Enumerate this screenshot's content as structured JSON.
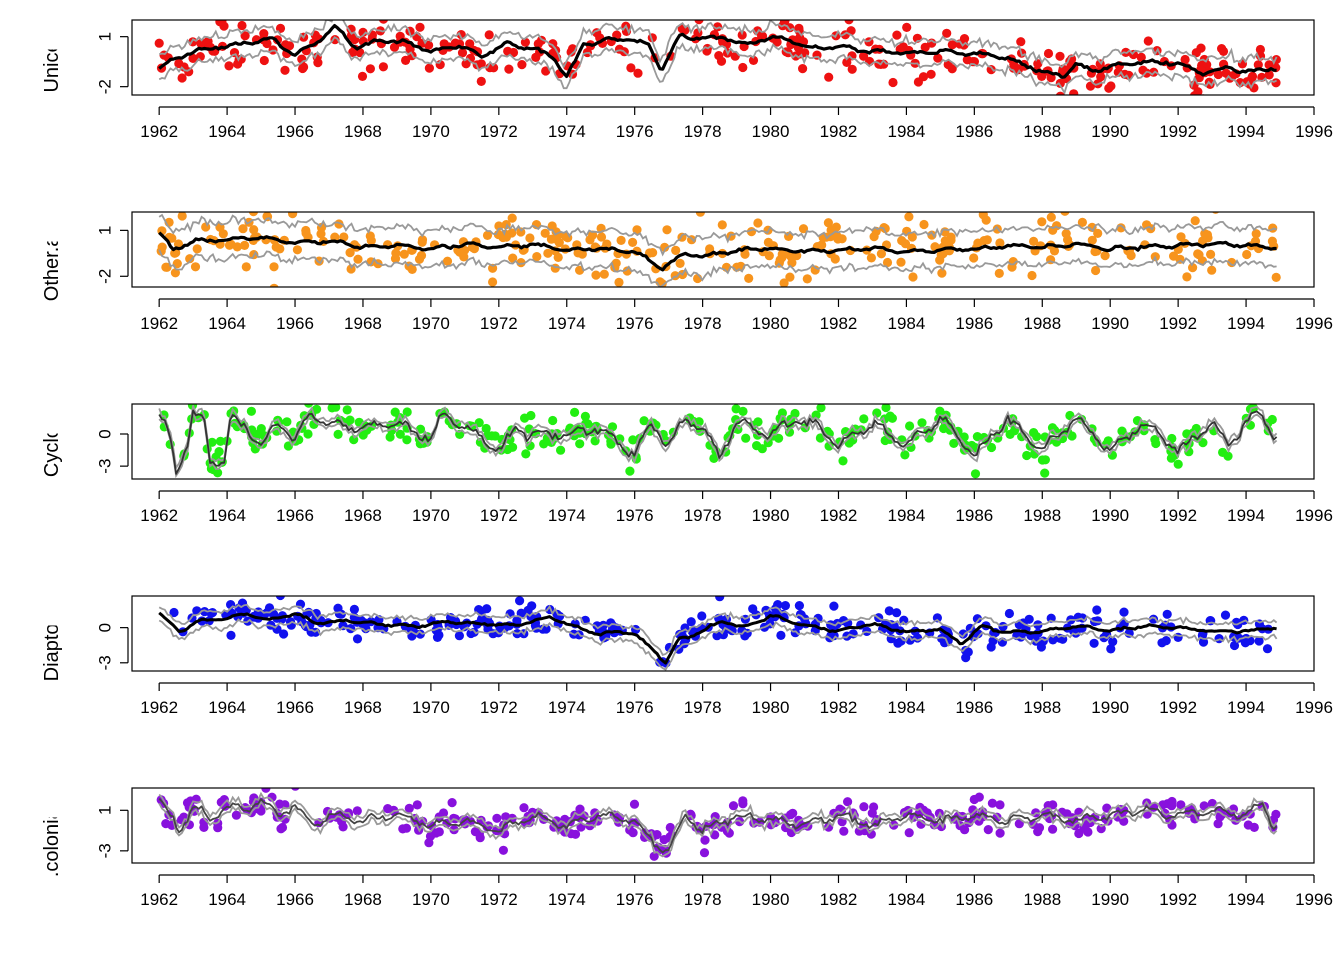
{
  "chart_data": [
    {
      "type": "scatter",
      "ylabel": "Unicells",
      "ylim": [
        -2.5,
        2.0
      ],
      "yticks": [
        1,
        -2
      ],
      "xlim": [
        1961.2,
        1996
      ],
      "xticks": [
        1962,
        1964,
        1966,
        1968,
        1970,
        1972,
        1974,
        1976,
        1978,
        1980,
        1982,
        1984,
        1986,
        1988,
        1990,
        1992,
        1994,
        1996
      ],
      "point_color": "#ee1111",
      "fit_color": "#000000",
      "band_color": "#999999",
      "fit_width": 3.2,
      "band_offset": 0.7,
      "fit_knots": [
        [
          1962.0,
          -0.9
        ],
        [
          1962.4,
          -0.4
        ],
        [
          1963.0,
          0.1
        ],
        [
          1963.8,
          0.4
        ],
        [
          1964.6,
          0.6
        ],
        [
          1965.3,
          0.9
        ],
        [
          1966.0,
          -0.1
        ],
        [
          1966.5,
          0.5
        ],
        [
          1967.2,
          1.6
        ],
        [
          1967.8,
          0.3
        ],
        [
          1968.5,
          0.8
        ],
        [
          1969.2,
          0.7
        ],
        [
          1970.0,
          0.1
        ],
        [
          1970.8,
          0.5
        ],
        [
          1971.5,
          -0.2
        ],
        [
          1972.2,
          0.6
        ],
        [
          1973.0,
          0.3
        ],
        [
          1973.6,
          -0.2
        ],
        [
          1974.0,
          -1.4
        ],
        [
          1974.5,
          0.5
        ],
        [
          1975.2,
          0.8
        ],
        [
          1975.8,
          0.9
        ],
        [
          1976.4,
          0.5
        ],
        [
          1976.8,
          -1.0
        ],
        [
          1977.3,
          1.0
        ],
        [
          1978.0,
          0.9
        ],
        [
          1978.6,
          1.0
        ],
        [
          1979.3,
          0.5
        ],
        [
          1980.0,
          1.0
        ],
        [
          1980.6,
          0.8
        ],
        [
          1981.2,
          0.3
        ],
        [
          1982.0,
          0.4
        ],
        [
          1982.6,
          0.2
        ],
        [
          1983.3,
          0.1
        ],
        [
          1984.0,
          0.0
        ],
        [
          1985.0,
          0.1
        ],
        [
          1986.0,
          0.0
        ],
        [
          1987.0,
          -0.3
        ],
        [
          1987.6,
          -0.8
        ],
        [
          1988.2,
          -1.2
        ],
        [
          1988.6,
          -1.4
        ],
        [
          1989.0,
          -0.6
        ],
        [
          1989.5,
          -1.1
        ],
        [
          1990.0,
          -0.8
        ],
        [
          1991.0,
          -0.5
        ],
        [
          1992.0,
          -0.6
        ],
        [
          1992.7,
          -1.2
        ],
        [
          1993.5,
          -0.9
        ],
        [
          1994.2,
          -1.1
        ],
        [
          1994.8,
          -0.9
        ]
      ],
      "jitter": 0.22,
      "spread": 0.75,
      "seed": 11,
      "points_count": 330
    },
    {
      "type": "scatter",
      "ylabel": "Other.algae",
      "ylim": [
        -2.7,
        2.2
      ],
      "yticks": [
        1,
        -2
      ],
      "xlim": [
        1961.2,
        1996
      ],
      "xticks": [
        1962,
        1964,
        1966,
        1968,
        1970,
        1972,
        1974,
        1976,
        1978,
        1980,
        1982,
        1984,
        1986,
        1988,
        1990,
        1992,
        1994,
        1996
      ],
      "point_color": "#f7941d",
      "fit_color": "#000000",
      "band_color": "#999999",
      "fit_width": 3.2,
      "band_offset": 1.15,
      "fit_knots": [
        [
          1962.0,
          0.9
        ],
        [
          1962.4,
          -0.3
        ],
        [
          1963.0,
          0.3
        ],
        [
          1964.0,
          0.4
        ],
        [
          1965.0,
          0.5
        ],
        [
          1966.0,
          0.2
        ],
        [
          1967.0,
          0.3
        ],
        [
          1968.0,
          -0.1
        ],
        [
          1969.0,
          0.0
        ],
        [
          1970.0,
          -0.2
        ],
        [
          1971.0,
          0.1
        ],
        [
          1972.0,
          -0.1
        ],
        [
          1973.0,
          0.1
        ],
        [
          1974.0,
          -0.3
        ],
        [
          1975.0,
          -0.2
        ],
        [
          1976.0,
          -0.4
        ],
        [
          1976.8,
          -1.5
        ],
        [
          1977.5,
          -0.5
        ],
        [
          1978.0,
          -0.7
        ],
        [
          1979.0,
          -0.3
        ],
        [
          1980.0,
          -0.2
        ],
        [
          1981.0,
          -0.4
        ],
        [
          1982.0,
          -0.3
        ],
        [
          1983.0,
          -0.2
        ],
        [
          1984.0,
          -0.4
        ],
        [
          1985.0,
          -0.3
        ],
        [
          1986.0,
          -0.2
        ],
        [
          1987.0,
          0.0
        ],
        [
          1988.0,
          -0.1
        ],
        [
          1989.0,
          0.1
        ],
        [
          1990.0,
          -0.2
        ],
        [
          1991.0,
          -0.1
        ],
        [
          1992.0,
          0.0
        ],
        [
          1993.0,
          0.1
        ],
        [
          1994.0,
          0.0
        ],
        [
          1994.8,
          -0.1
        ]
      ],
      "jitter": 0.2,
      "spread": 1.0,
      "seed": 23,
      "points_count": 320
    },
    {
      "type": "scatter",
      "ylabel": "Cyclops",
      "ylim": [
        -4.2,
        2.8
      ],
      "yticks": [
        0,
        -3
      ],
      "xlim": [
        1961.2,
        1996
      ],
      "xticks": [
        1962,
        1964,
        1966,
        1968,
        1970,
        1972,
        1974,
        1976,
        1978,
        1980,
        1982,
        1984,
        1986,
        1988,
        1990,
        1992,
        1994,
        1996
      ],
      "point_color": "#22ee11",
      "fit_color": "#333333",
      "band_color": "#999999",
      "fit_width": 1.8,
      "band_offset": 0.35,
      "fit_knots": [
        [
          1962.0,
          2.0
        ],
        [
          1962.3,
          0.0
        ],
        [
          1962.5,
          -3.5
        ],
        [
          1962.8,
          -1.0
        ],
        [
          1963.0,
          2.0
        ],
        [
          1963.3,
          1.5
        ],
        [
          1963.5,
          -2.5
        ],
        [
          1963.9,
          -2.5
        ],
        [
          1964.1,
          1.5
        ],
        [
          1964.6,
          0.5
        ],
        [
          1965.0,
          -1.0
        ],
        [
          1965.5,
          1.0
        ],
        [
          1966.0,
          -0.5
        ],
        [
          1966.5,
          2.0
        ],
        [
          1967.0,
          1.0
        ],
        [
          1968.0,
          0.5
        ],
        [
          1969.0,
          1.0
        ],
        [
          1970.0,
          -0.5
        ],
        [
          1970.4,
          2.0
        ],
        [
          1971.0,
          0.5
        ],
        [
          1972.0,
          -1.5
        ],
        [
          1972.5,
          0.5
        ],
        [
          1973.0,
          0.0
        ],
        [
          1974.0,
          0.0
        ],
        [
          1975.0,
          0.5
        ],
        [
          1976.0,
          -2.0
        ],
        [
          1976.5,
          1.0
        ],
        [
          1977.0,
          -1.0
        ],
        [
          1977.5,
          1.5
        ],
        [
          1978.0,
          0.5
        ],
        [
          1978.5,
          -2.0
        ],
        [
          1979.0,
          1.0
        ],
        [
          1980.0,
          0.0
        ],
        [
          1980.8,
          1.5
        ],
        [
          1981.5,
          0.5
        ],
        [
          1982.0,
          -1.0
        ],
        [
          1983.0,
          1.0
        ],
        [
          1984.0,
          -1.0
        ],
        [
          1985.0,
          1.5
        ],
        [
          1986.0,
          -2.0
        ],
        [
          1987.0,
          1.5
        ],
        [
          1988.0,
          -1.5
        ],
        [
          1989.0,
          1.5
        ],
        [
          1990.0,
          -1.5
        ],
        [
          1991.0,
          1.0
        ],
        [
          1992.0,
          -1.5
        ],
        [
          1993.0,
          1.0
        ],
        [
          1993.5,
          -1.0
        ],
        [
          1994.0,
          1.0
        ],
        [
          1994.4,
          2.0
        ],
        [
          1994.8,
          0.0
        ]
      ],
      "wiggle": 1.4,
      "jitter": 0.22,
      "spread": 0.8,
      "seed": 37,
      "points_count": 320
    },
    {
      "type": "scatter",
      "ylabel": "Diaptomus",
      "ylim": [
        -3.7,
        2.7
      ],
      "yticks": [
        0,
        -3
      ],
      "xlim": [
        1961.2,
        1996
      ],
      "xticks": [
        1962,
        1964,
        1966,
        1968,
        1970,
        1972,
        1974,
        1976,
        1978,
        1980,
        1982,
        1984,
        1986,
        1988,
        1990,
        1992,
        1994,
        1996
      ],
      "point_color": "#1111ee",
      "fit_color": "#000000",
      "band_color": "#999999",
      "fit_width": 3.0,
      "band_offset": 0.65,
      "fit_knots": [
        [
          1962.0,
          1.2
        ],
        [
          1962.6,
          -0.3
        ],
        [
          1963.2,
          0.6
        ],
        [
          1964.0,
          0.8
        ],
        [
          1964.6,
          1.2
        ],
        [
          1965.2,
          0.6
        ],
        [
          1966.0,
          1.2
        ],
        [
          1966.6,
          0.4
        ],
        [
          1967.5,
          0.6
        ],
        [
          1968.5,
          0.3
        ],
        [
          1969.5,
          0.1
        ],
        [
          1970.5,
          0.5
        ],
        [
          1971.5,
          0.3
        ],
        [
          1972.5,
          0.2
        ],
        [
          1973.5,
          0.9
        ],
        [
          1974.2,
          0.1
        ],
        [
          1975.0,
          -0.6
        ],
        [
          1975.6,
          -0.3
        ],
        [
          1976.0,
          -0.6
        ],
        [
          1976.6,
          -2.0
        ],
        [
          1976.9,
          -3.0
        ],
        [
          1977.3,
          -1.0
        ],
        [
          1978.0,
          -0.3
        ],
        [
          1978.6,
          0.6
        ],
        [
          1979.2,
          0.0
        ],
        [
          1980.0,
          1.0
        ],
        [
          1981.0,
          0.2
        ],
        [
          1982.0,
          -0.3
        ],
        [
          1983.0,
          0.3
        ],
        [
          1984.0,
          -0.4
        ],
        [
          1985.0,
          -0.1
        ],
        [
          1985.6,
          -1.4
        ],
        [
          1986.2,
          0.1
        ],
        [
          1987.0,
          -0.4
        ],
        [
          1988.0,
          -0.3
        ],
        [
          1989.0,
          0.1
        ],
        [
          1990.0,
          -0.2
        ],
        [
          1991.0,
          0.1
        ],
        [
          1992.0,
          0.0
        ],
        [
          1993.0,
          -0.3
        ],
        [
          1994.0,
          -0.3
        ],
        [
          1994.8,
          0.0
        ]
      ],
      "jitter": 0.22,
      "spread": 0.7,
      "seed": 53,
      "points_count": 330
    },
    {
      "type": "scatter",
      "ylabel": "Non.colonial.rotifers",
      "ylim": [
        -4.2,
        3.2
      ],
      "yticks": [
        1,
        -3
      ],
      "xlim": [
        1961.2,
        1996
      ],
      "xticks": [
        1962,
        1964,
        1966,
        1968,
        1970,
        1972,
        1974,
        1976,
        1978,
        1980,
        1982,
        1984,
        1986,
        1988,
        1990,
        1992,
        1994,
        1996
      ],
      "point_color": "#8811dd",
      "fit_color": "#444444",
      "band_color": "#999999",
      "fit_width": 1.8,
      "band_offset": 0.45,
      "fit_knots": [
        [
          1962.0,
          2.2
        ],
        [
          1962.3,
          0.5
        ],
        [
          1962.6,
          -1.0
        ],
        [
          1963.0,
          1.5
        ],
        [
          1963.5,
          0.0
        ],
        [
          1964.0,
          1.5
        ],
        [
          1964.5,
          1.0
        ],
        [
          1965.0,
          2.0
        ],
        [
          1965.5,
          0.5
        ],
        [
          1966.0,
          1.5
        ],
        [
          1966.5,
          -0.5
        ],
        [
          1967.0,
          0.5
        ],
        [
          1968.0,
          0.0
        ],
        [
          1969.0,
          0.5
        ],
        [
          1970.0,
          -0.5
        ],
        [
          1971.0,
          0.0
        ],
        [
          1972.0,
          -1.0
        ],
        [
          1973.0,
          0.5
        ],
        [
          1974.0,
          -0.5
        ],
        [
          1975.0,
          0.5
        ],
        [
          1976.0,
          0.0
        ],
        [
          1976.6,
          -2.5
        ],
        [
          1977.0,
          -3.0
        ],
        [
          1977.5,
          0.5
        ],
        [
          1978.0,
          -1.0
        ],
        [
          1979.0,
          0.5
        ],
        [
          1980.0,
          0.0
        ],
        [
          1981.0,
          -0.5
        ],
        [
          1982.0,
          0.5
        ],
        [
          1983.0,
          -0.5
        ],
        [
          1984.0,
          0.5
        ],
        [
          1985.0,
          0.0
        ],
        [
          1986.0,
          0.5
        ],
        [
          1987.0,
          0.0
        ],
        [
          1988.0,
          0.5
        ],
        [
          1989.0,
          0.0
        ],
        [
          1990.0,
          0.5
        ],
        [
          1991.0,
          1.0
        ],
        [
          1992.0,
          0.5
        ],
        [
          1993.0,
          1.0
        ],
        [
          1994.0,
          0.5
        ],
        [
          1994.5,
          1.5
        ],
        [
          1994.8,
          -0.5
        ]
      ],
      "wiggle": 1.2,
      "jitter": 0.2,
      "spread": 0.85,
      "seed": 71,
      "points_count": 300
    }
  ]
}
